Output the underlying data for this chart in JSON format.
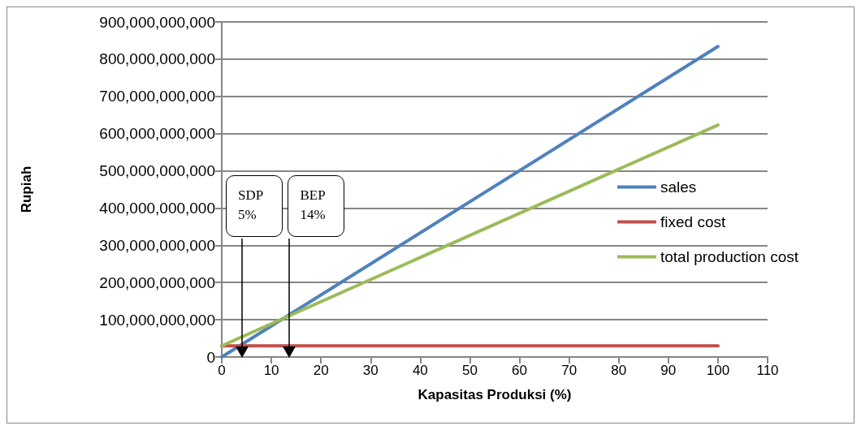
{
  "chart_data": {
    "type": "line",
    "xlabel": "Kapasitas Produksi (%)",
    "ylabel": "Rupiah",
    "x": [
      0,
      100
    ],
    "series": [
      {
        "name": "sales",
        "color": "#4f81bd",
        "values": [
          0,
          834000000000
        ]
      },
      {
        "name": "fixed cost",
        "color": "#c0504d",
        "values": [
          30000000000,
          30000000000
        ]
      },
      {
        "name": "total production cost",
        "color": "#9bbb59",
        "values": [
          30000000000,
          623000000000
        ]
      }
    ],
    "xlim": [
      0,
      110
    ],
    "xticks": [
      0,
      10,
      20,
      30,
      40,
      50,
      60,
      70,
      80,
      90,
      100,
      110
    ],
    "ylim": [
      0,
      900000000000
    ],
    "yticks": [
      0,
      {
        "value": 100000000000,
        "label": "100,000,000,000"
      },
      {
        "value": 200000000000,
        "label": "200,000,000,000"
      },
      {
        "value": 300000000000,
        "label": "300,000,000,000"
      },
      {
        "value": 400000000000,
        "label": "400,000,000,000"
      },
      {
        "value": 500000000000,
        "label": "500,000,000,000"
      },
      {
        "value": 600000000000,
        "label": "600,000,000,000"
      },
      {
        "value": 700000000000,
        "label": "700,000,000,000"
      },
      {
        "value": 800000000000,
        "label": "800,000,000,000"
      },
      {
        "value": 900000000000,
        "label": "900,000,000,000"
      }
    ],
    "ref_lines": [
      {
        "axis": "x",
        "value": 4,
        "label": "SDP\n5%"
      },
      {
        "axis": "x",
        "value": 13.5,
        "label": "BEP\n14%"
      }
    ],
    "grid": "y",
    "legend": "right",
    "marker": "none",
    "line_style": "solid"
  }
}
